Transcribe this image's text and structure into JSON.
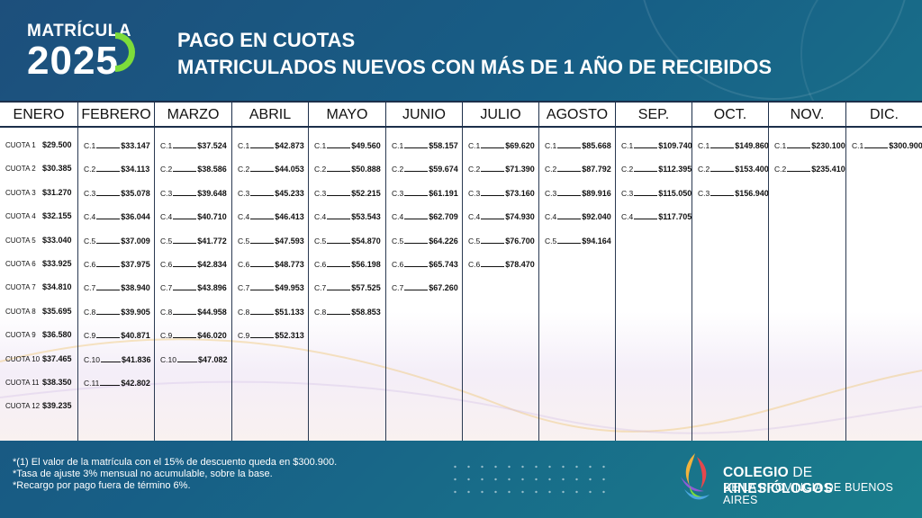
{
  "header": {
    "logo_label": "MATRÍCULA",
    "logo_year": "2025",
    "title_line1": "PAGO EN CUOTAS",
    "title_line2": "MATRICULADOS NUEVOS CON MÁS DE 1 AÑO DE RECIBIDOS"
  },
  "months": [
    {
      "name": "ENERO",
      "items": [
        {
          "label": "CUOTA 1",
          "amount": "$29.500"
        },
        {
          "label": "CUOTA 2",
          "amount": "$30.385"
        },
        {
          "label": "CUOTA 3",
          "amount": "$31.270"
        },
        {
          "label": "CUOTA 4",
          "amount": "$32.155"
        },
        {
          "label": "CUOTA 5",
          "amount": "$33.040"
        },
        {
          "label": "CUOTA 6",
          "amount": "$33.925"
        },
        {
          "label": "CUOTA 7",
          "amount": "$34.810"
        },
        {
          "label": "CUOTA 8",
          "amount": "$35.695"
        },
        {
          "label": "CUOTA 9",
          "amount": "$36.580"
        },
        {
          "label": "CUOTA 10",
          "amount": "$37.465"
        },
        {
          "label": "CUOTA 11",
          "amount": "$38.350"
        },
        {
          "label": "CUOTA 12",
          "amount": "$39.235"
        }
      ]
    },
    {
      "name": "FEBRERO",
      "items": [
        {
          "label": "C.1",
          "amount": "$33.147"
        },
        {
          "label": "C.2",
          "amount": "$34.113"
        },
        {
          "label": "C.3",
          "amount": "$35.078"
        },
        {
          "label": "C.4",
          "amount": "$36.044"
        },
        {
          "label": "C.5",
          "amount": "$37.009"
        },
        {
          "label": "C.6",
          "amount": "$37.975"
        },
        {
          "label": "C.7",
          "amount": "$38.940"
        },
        {
          "label": "C.8",
          "amount": "$39.905"
        },
        {
          "label": "C.9",
          "amount": "$40.871"
        },
        {
          "label": "C.10",
          "amount": "$41.836"
        },
        {
          "label": "C.11",
          "amount": "$42.802"
        }
      ]
    },
    {
      "name": "MARZO",
      "items": [
        {
          "label": "C.1",
          "amount": "$37.524"
        },
        {
          "label": "C.2",
          "amount": "$38.586"
        },
        {
          "label": "C.3",
          "amount": "$39.648"
        },
        {
          "label": "C.4",
          "amount": "$40.710"
        },
        {
          "label": "C.5",
          "amount": "$41.772"
        },
        {
          "label": "C.6",
          "amount": "$42.834"
        },
        {
          "label": "C.7",
          "amount": "$43.896"
        },
        {
          "label": "C.8",
          "amount": "$44.958"
        },
        {
          "label": "C.9",
          "amount": "$46.020"
        },
        {
          "label": "C.10",
          "amount": "$47.082"
        }
      ]
    },
    {
      "name": "ABRIL",
      "items": [
        {
          "label": "C.1",
          "amount": "$42.873"
        },
        {
          "label": "C.2",
          "amount": "$44.053"
        },
        {
          "label": "C.3",
          "amount": "$45.233"
        },
        {
          "label": "C.4",
          "amount": "$46.413"
        },
        {
          "label": "C.5",
          "amount": "$47.593"
        },
        {
          "label": "C.6",
          "amount": "$48.773"
        },
        {
          "label": "C.7",
          "amount": "$49.953"
        },
        {
          "label": "C.8",
          "amount": "$51.133"
        },
        {
          "label": "C.9",
          "amount": "$52.313"
        }
      ]
    },
    {
      "name": "MAYO",
      "items": [
        {
          "label": "C.1",
          "amount": "$49.560"
        },
        {
          "label": "C.2",
          "amount": "$50.888"
        },
        {
          "label": "C.3",
          "amount": "$52.215"
        },
        {
          "label": "C.4",
          "amount": "$53.543"
        },
        {
          "label": "C.5",
          "amount": "$54.870"
        },
        {
          "label": "C.6",
          "amount": "$56.198"
        },
        {
          "label": "C.7",
          "amount": "$57.525"
        },
        {
          "label": "C.8",
          "amount": "$58.853"
        }
      ]
    },
    {
      "name": "JUNIO",
      "items": [
        {
          "label": "C.1",
          "amount": "$58.157"
        },
        {
          "label": "C.2",
          "amount": "$59.674"
        },
        {
          "label": "C.3",
          "amount": "$61.191"
        },
        {
          "label": "C.4",
          "amount": "$62.709"
        },
        {
          "label": "C.5",
          "amount": "$64.226"
        },
        {
          "label": "C.6",
          "amount": "$65.743"
        },
        {
          "label": "C.7",
          "amount": "$67.260"
        }
      ]
    },
    {
      "name": "JULIO",
      "items": [
        {
          "label": "C.1",
          "amount": "$69.620"
        },
        {
          "label": "C.2",
          "amount": "$71.390"
        },
        {
          "label": "C.3",
          "amount": "$73.160"
        },
        {
          "label": "C.4",
          "amount": "$74.930"
        },
        {
          "label": "C.5",
          "amount": "$76.700"
        },
        {
          "label": "C.6",
          "amount": "$78.470"
        }
      ]
    },
    {
      "name": "AGOSTO",
      "items": [
        {
          "label": "C.1",
          "amount": "$85.668"
        },
        {
          "label": "C.2",
          "amount": "$87.792"
        },
        {
          "label": "C.3",
          "amount": "$89.916"
        },
        {
          "label": "C.4",
          "amount": "$92.040"
        },
        {
          "label": "C.5",
          "amount": "$94.164"
        }
      ]
    },
    {
      "name": "SEP.",
      "items": [
        {
          "label": "C.1",
          "amount": "$109.740"
        },
        {
          "label": "C.2",
          "amount": "$112.395"
        },
        {
          "label": "C.3",
          "amount": "$115.050"
        },
        {
          "label": "C.4",
          "amount": "$117.705"
        }
      ]
    },
    {
      "name": "OCT.",
      "items": [
        {
          "label": "C.1",
          "amount": "$149.860"
        },
        {
          "label": "C.2",
          "amount": "$153.400"
        },
        {
          "label": "C.3",
          "amount": "$156.940"
        }
      ]
    },
    {
      "name": "NOV.",
      "items": [
        {
          "label": "C.1",
          "amount": "$230.100"
        },
        {
          "label": "C.2",
          "amount": "$235.410"
        }
      ]
    },
    {
      "name": "DIC.",
      "items": [
        {
          "label": "C.1",
          "amount": "$300.900"
        }
      ]
    }
  ],
  "footer": {
    "note1": "*(1) El valor de la matrícula con el 15% de descuento queda en $300.900.",
    "note2": "*Tasa de ajuste 3% mensual no acumulable, sobre la base.",
    "note3": "*Recargo por pago fuera de término 6%.",
    "org_line1_a": "COLEGIO",
    "org_line1_b": "DE",
    "org_line1_c": "KINESIÓLOGOS",
    "org_line2": "DE LA PROVINCIA DE BUENOS AIRES"
  },
  "colors": {
    "accent_green": "#7ddc3a",
    "table_border": "#1c2f4a"
  }
}
